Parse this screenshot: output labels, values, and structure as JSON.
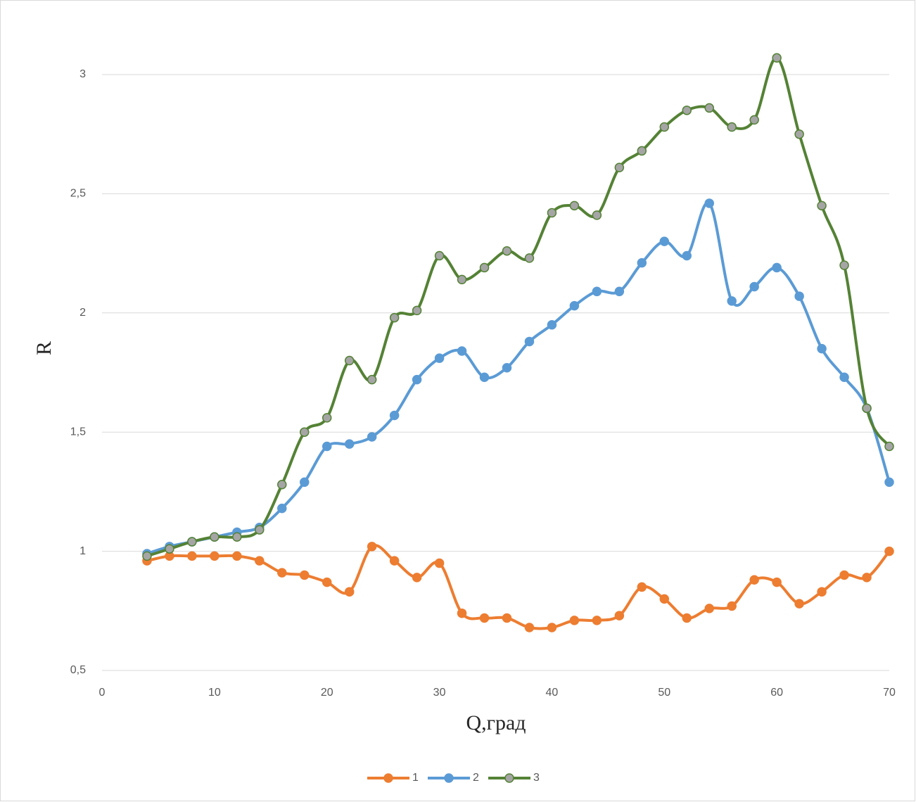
{
  "chart_data": {
    "type": "line",
    "x_label": "Q,град",
    "y_label": "R",
    "x": [
      4,
      6,
      8,
      10,
      12,
      14,
      16,
      18,
      20,
      22,
      24,
      26,
      28,
      30,
      32,
      34,
      36,
      38,
      40,
      42,
      44,
      46,
      48,
      50,
      52,
      54,
      56,
      58,
      60,
      62,
      64,
      66,
      68,
      70
    ],
    "series": [
      {
        "name": "1",
        "color": "#ED7D31",
        "marker_fill": "#ED7D31",
        "values": [
          0.96,
          0.98,
          0.98,
          0.98,
          0.98,
          0.96,
          0.91,
          0.9,
          0.87,
          0.83,
          1.02,
          0.96,
          0.89,
          0.95,
          0.74,
          0.72,
          0.72,
          0.68,
          0.68,
          0.71,
          0.71,
          0.73,
          0.85,
          0.8,
          0.72,
          0.76,
          0.77,
          0.88,
          0.87,
          0.78,
          0.83,
          0.9,
          0.89,
          1.0
        ]
      },
      {
        "name": "2",
        "color": "#5B9BD5",
        "marker_fill": "#5B9BD5",
        "values": [
          0.99,
          1.02,
          1.04,
          1.06,
          1.08,
          1.1,
          1.18,
          1.29,
          1.44,
          1.45,
          1.48,
          1.57,
          1.72,
          1.81,
          1.84,
          1.73,
          1.77,
          1.88,
          1.95,
          2.03,
          2.09,
          2.09,
          2.21,
          2.3,
          2.24,
          2.46,
          2.05,
          2.11,
          2.19,
          2.07,
          1.85,
          1.73,
          1.6,
          1.29
        ]
      },
      {
        "name": "3",
        "color": "#548235",
        "marker_fill": "#A5A5A5",
        "values": [
          0.98,
          1.01,
          1.04,
          1.06,
          1.06,
          1.09,
          1.28,
          1.5,
          1.56,
          1.8,
          1.72,
          1.98,
          2.01,
          2.24,
          2.14,
          2.19,
          2.26,
          2.23,
          2.42,
          2.45,
          2.41,
          2.61,
          2.68,
          2.78,
          2.85,
          2.86,
          2.78,
          2.81,
          3.07,
          2.75,
          2.45,
          2.2,
          1.6,
          1.44
        ]
      }
    ],
    "xlim": [
      0,
      70
    ],
    "xticks": [
      0,
      10,
      20,
      30,
      40,
      50,
      60,
      70
    ],
    "ylim": [
      0.5,
      3
    ],
    "yticks": [
      {
        "value": 0.5,
        "label": "0,5"
      },
      1,
      {
        "value": 1.5,
        "label": "1,5"
      },
      2,
      {
        "value": 2.5,
        "label": "2,5"
      },
      3
    ],
    "grid": true,
    "legend": "bottom"
  }
}
